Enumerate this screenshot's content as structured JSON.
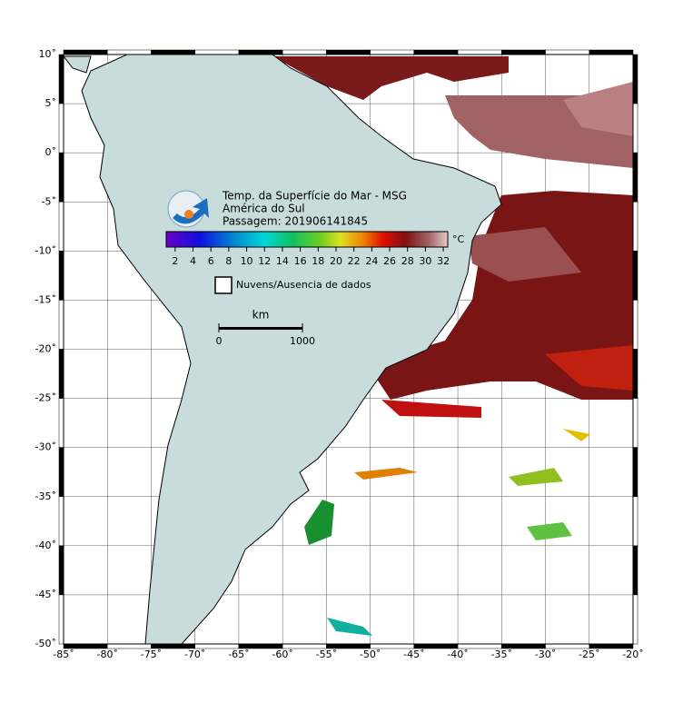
{
  "map": {
    "title": "Temp. da Superfície do Mar - MSG",
    "region": "América do Sul",
    "pass": "Passagem: 201906141845",
    "lon_range": [
      -85,
      -20
    ],
    "lat_range": [
      -50,
      10
    ],
    "lon_ticks": [
      {
        "value": -85,
        "label": "-85˚"
      },
      {
        "value": -80,
        "label": "-80˚"
      },
      {
        "value": -75,
        "label": "-75˚"
      },
      {
        "value": -70,
        "label": "-70˚"
      },
      {
        "value": -65,
        "label": "-65˚"
      },
      {
        "value": -60,
        "label": "-60˚"
      },
      {
        "value": -55,
        "label": "-55˚"
      },
      {
        "value": -50,
        "label": "-50˚"
      },
      {
        "value": -45,
        "label": "-45˚"
      },
      {
        "value": -40,
        "label": "-40˚"
      },
      {
        "value": -35,
        "label": "-35˚"
      },
      {
        "value": -30,
        "label": "-30˚"
      },
      {
        "value": -25,
        "label": "-25˚"
      },
      {
        "value": -20,
        "label": "-20˚"
      }
    ],
    "lat_ticks": [
      {
        "value": 10,
        "label": "10˚"
      },
      {
        "value": 5,
        "label": "5˚"
      },
      {
        "value": 0,
        "label": "0˚"
      },
      {
        "value": -5,
        "label": "-5˚"
      },
      {
        "value": -10,
        "label": "-10˚"
      },
      {
        "value": -15,
        "label": "-15˚"
      },
      {
        "value": -20,
        "label": "-20˚"
      },
      {
        "value": -25,
        "label": "-25˚"
      },
      {
        "value": -30,
        "label": "-30˚"
      },
      {
        "value": -35,
        "label": "-35˚"
      },
      {
        "value": -40,
        "label": "-40˚"
      },
      {
        "value": -45,
        "label": "-45˚"
      },
      {
        "value": -50,
        "label": "-50˚"
      }
    ],
    "colorbar": {
      "range": [
        1,
        32.5
      ],
      "ticks": [
        2,
        4,
        6,
        8,
        10,
        12,
        14,
        16,
        18,
        20,
        22,
        24,
        26,
        28,
        30,
        32
      ],
      "unit": "°C"
    },
    "legend": "Nuvens/Ausencia de dados",
    "scale": {
      "unit": "km",
      "ticks": [
        0,
        1000
      ]
    }
  }
}
